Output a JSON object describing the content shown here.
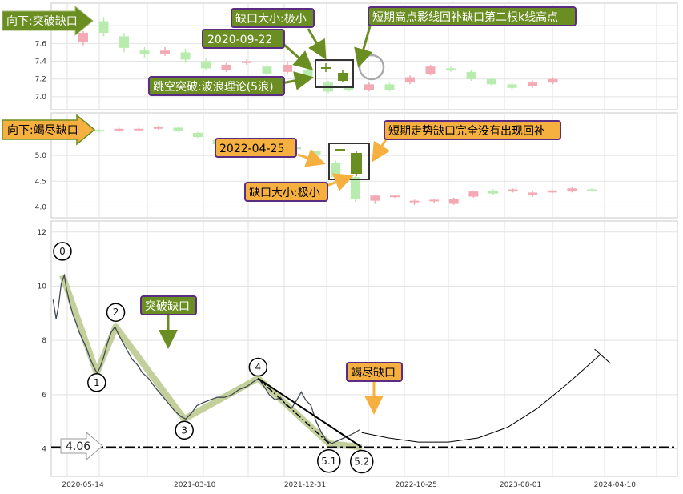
{
  "colors": {
    "up": "#f4aab4",
    "down": "#b8ecae",
    "gap_green": "#6b8e23",
    "label_green": "#6b8e23",
    "label_orange": "#f5b040",
    "label_border": "#5a2d82",
    "wave_band": "#b8c88a",
    "price_line": "#444a55",
    "support": "#000000"
  },
  "panel1": {
    "arrow_label": "向下:突破缺口",
    "date_label": "2020-09-22",
    "size_label": "缺口大小:极小",
    "signal_label": "跳空突破:波浪理论(5浪)",
    "high_label": "短期高点影线回补缺口第二根k线高点",
    "chart_data": {
      "type": "candlestick",
      "ylim": [
        6.9,
        8.0
      ],
      "yticks": [
        "7.0",
        "7.2",
        "7.4",
        "7.6",
        "7.8"
      ],
      "candles": [
        [
          0,
          7.62,
          7.72,
          7.58,
          7.74
        ],
        [
          1,
          7.85,
          7.72,
          7.68,
          7.9
        ],
        [
          2,
          7.68,
          7.55,
          7.5,
          7.72
        ],
        [
          3,
          7.52,
          7.48,
          7.44,
          7.56
        ],
        [
          4,
          7.48,
          7.52,
          7.46,
          7.56
        ],
        [
          5,
          7.5,
          7.42,
          7.38,
          7.54
        ],
        [
          6,
          7.4,
          7.32,
          7.3,
          7.44
        ],
        [
          7,
          7.3,
          7.36,
          7.28,
          7.38
        ],
        [
          8,
          7.38,
          7.4,
          7.36,
          7.42
        ],
        [
          9,
          7.34,
          7.26,
          7.24,
          7.36
        ],
        [
          10,
          7.28,
          7.36,
          7.26,
          7.4
        ],
        [
          11,
          7.3,
          7.22,
          7.16,
          7.32
        ],
        [
          12,
          7.16,
          7.06,
          7.04,
          7.18
        ],
        [
          13,
          7.1,
          7.08,
          7.06,
          7.12
        ],
        [
          14,
          7.08,
          7.14,
          7.06,
          7.16
        ],
        [
          15,
          7.14,
          7.08,
          7.06,
          7.16
        ],
        [
          16,
          7.16,
          7.22,
          7.14,
          7.24
        ],
        [
          17,
          7.26,
          7.34,
          7.24,
          7.36
        ],
        [
          18,
          7.32,
          7.3,
          7.28,
          7.34
        ],
        [
          19,
          7.28,
          7.2,
          7.18,
          7.3
        ],
        [
          20,
          7.2,
          7.14,
          7.12,
          7.22
        ],
        [
          21,
          7.14,
          7.1,
          7.08,
          7.16
        ],
        [
          22,
          7.12,
          7.16,
          7.1,
          7.18
        ],
        [
          23,
          7.16,
          7.2,
          7.14,
          7.22
        ]
      ]
    }
  },
  "panel2": {
    "arrow_label": "向下:竭尽缺口",
    "date_label": "2022-04-25",
    "size_label": "缺口大小:极小",
    "note_label": "短期走势缺口完全没有出现回补",
    "chart_data": {
      "type": "candlestick",
      "ylim": [
        3.85,
        5.75
      ],
      "yticks": [
        "4.0",
        "4.5",
        "5.0"
      ],
      "candles": [
        [
          0,
          5.5,
          5.48,
          5.44,
          5.52
        ],
        [
          1,
          5.48,
          5.52,
          5.46,
          5.54
        ],
        [
          2,
          5.5,
          5.52,
          5.48,
          5.54
        ],
        [
          3,
          5.52,
          5.56,
          5.5,
          5.58
        ],
        [
          4,
          5.54,
          5.48,
          5.46,
          5.56
        ],
        [
          5,
          5.44,
          5.36,
          5.34,
          5.46
        ],
        [
          6,
          5.3,
          5.22,
          5.2,
          5.32
        ],
        [
          7,
          5.2,
          5.26,
          5.18,
          5.28
        ],
        [
          8,
          5.24,
          5.14,
          5.12,
          5.26
        ],
        [
          9,
          5.14,
          5.06,
          5.04,
          5.16
        ],
        [
          10,
          5.16,
          5.12,
          5.1,
          5.18
        ],
        [
          11,
          5.08,
          5.02,
          4.98,
          5.1
        ],
        [
          12,
          4.86,
          4.58,
          4.5,
          4.9
        ],
        [
          13,
          4.58,
          4.16,
          4.1,
          4.6
        ],
        [
          14,
          4.12,
          4.22,
          4.06,
          4.24
        ],
        [
          15,
          4.2,
          4.22,
          4.18,
          4.24
        ],
        [
          16,
          4.1,
          4.12,
          4.04,
          4.14
        ],
        [
          17,
          4.12,
          4.14,
          4.08,
          4.16
        ],
        [
          18,
          4.06,
          4.16,
          4.04,
          4.18
        ],
        [
          19,
          4.2,
          4.3,
          4.18,
          4.32
        ],
        [
          20,
          4.32,
          4.26,
          4.24,
          4.34
        ],
        [
          21,
          4.3,
          4.34,
          4.28,
          4.36
        ],
        [
          22,
          4.24,
          4.28,
          4.2,
          4.3
        ],
        [
          23,
          4.28,
          4.32,
          4.26,
          4.34
        ],
        [
          24,
          4.3,
          4.36,
          4.28,
          4.38
        ],
        [
          25,
          4.34,
          4.32,
          4.3,
          4.36
        ]
      ]
    }
  },
  "panel3": {
    "breakout_label": "突破缺口",
    "exhaustion_label": "竭尽缺口",
    "support_label": "4.06",
    "chart_data": {
      "type": "line",
      "ylim": [
        3.1,
        12.2
      ],
      "yticks": [
        "4",
        "6",
        "8",
        "10",
        "12"
      ],
      "xticks": [
        "2020-05-14",
        "2021-03-10",
        "2021-12-31",
        "2022-10-25",
        "2023-08-01",
        "2024-04-10"
      ],
      "xtick_days": [
        0,
        300,
        596,
        894,
        1174,
        1427
      ],
      "xlim_days": [
        -85,
        1595
      ],
      "support": 4.06,
      "price": [
        [
          -80,
          9.5
        ],
        [
          -72,
          8.8
        ],
        [
          -66,
          9.2
        ],
        [
          -58,
          10.1
        ],
        [
          -50,
          10.4
        ],
        [
          -44,
          9.9
        ],
        [
          -36,
          9.4
        ],
        [
          -28,
          9.0
        ],
        [
          -20,
          8.7
        ],
        [
          -10,
          8.3
        ],
        [
          0,
          8.0
        ],
        [
          10,
          7.7
        ],
        [
          20,
          7.3
        ],
        [
          30,
          7.0
        ],
        [
          38,
          6.8
        ],
        [
          46,
          7.0
        ],
        [
          56,
          7.4
        ],
        [
          66,
          7.9
        ],
        [
          76,
          8.3
        ],
        [
          86,
          8.5
        ],
        [
          96,
          8.2
        ],
        [
          108,
          7.9
        ],
        [
          120,
          7.6
        ],
        [
          132,
          7.3
        ],
        [
          146,
          7.1
        ],
        [
          160,
          6.8
        ],
        [
          176,
          6.6
        ],
        [
          192,
          6.3
        ],
        [
          210,
          6.0
        ],
        [
          228,
          5.7
        ],
        [
          246,
          5.4
        ],
        [
          262,
          5.2
        ],
        [
          276,
          5.1
        ],
        [
          290,
          5.3
        ],
        [
          306,
          5.6
        ],
        [
          322,
          5.7
        ],
        [
          340,
          5.8
        ],
        [
          360,
          5.9
        ],
        [
          380,
          5.9
        ],
        [
          400,
          6.0
        ],
        [
          420,
          6.2
        ],
        [
          440,
          6.3
        ],
        [
          460,
          6.5
        ],
        [
          472,
          6.6
        ],
        [
          486,
          6.3
        ],
        [
          500,
          6.0
        ],
        [
          516,
          5.8
        ],
        [
          530,
          5.9
        ],
        [
          546,
          5.6
        ],
        [
          560,
          5.5
        ],
        [
          574,
          5.8
        ],
        [
          586,
          6.1
        ],
        [
          598,
          5.8
        ],
        [
          612,
          5.6
        ],
        [
          626,
          5.0
        ],
        [
          640,
          4.6
        ],
        [
          654,
          4.3
        ],
        [
          668,
          4.2
        ],
        [
          684,
          4.3
        ],
        [
          700,
          4.4
        ],
        [
          716,
          4.5
        ],
        [
          730,
          4.6
        ],
        [
          742,
          4.7
        ]
      ],
      "wave_points": [
        {
          "label": "0",
          "x": -55,
          "y": 10.4
        },
        {
          "label": "1",
          "x": 37,
          "y": 6.8
        },
        {
          "label": "2",
          "x": 88,
          "y": 8.5
        },
        {
          "label": "3",
          "x": 272,
          "y": 5.1
        },
        {
          "label": "4",
          "x": 470,
          "y": 6.6
        },
        {
          "label": "5.1",
          "x": 660,
          "y": 4.2
        },
        {
          "label": "5.2",
          "x": 748,
          "y": 4.06
        }
      ],
      "projection": [
        [
          748,
          4.6
        ],
        [
          820,
          4.4
        ],
        [
          900,
          4.25
        ],
        [
          980,
          4.25
        ],
        [
          1060,
          4.4
        ],
        [
          1140,
          4.8
        ],
        [
          1220,
          5.5
        ],
        [
          1300,
          6.4
        ],
        [
          1390,
          7.5
        ]
      ]
    }
  }
}
